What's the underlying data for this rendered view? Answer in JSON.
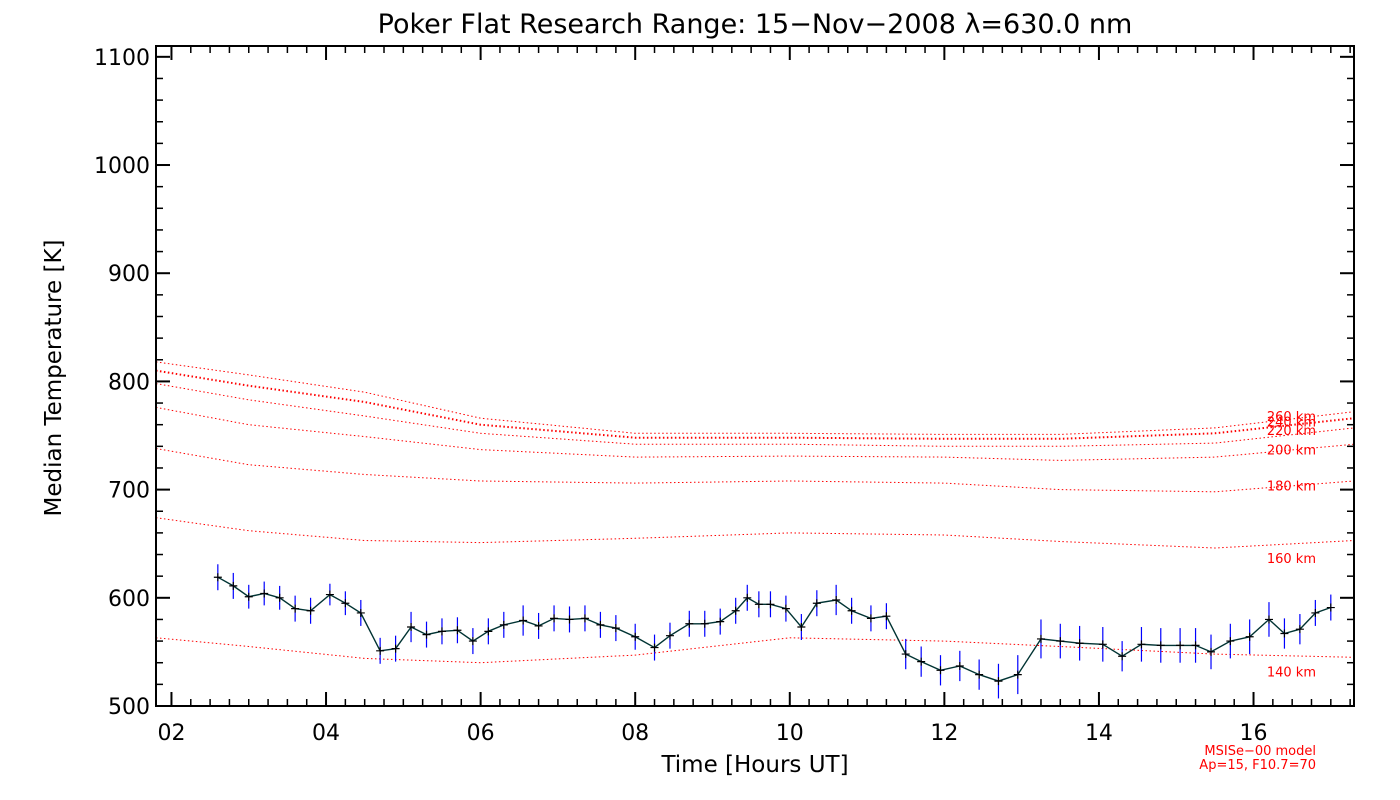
{
  "chart_data": {
    "type": "line",
    "title": "Poker Flat Research Range: 15−Nov−2008 λ=630.0 nm",
    "xlabel": "Time [Hours UT]",
    "ylabel": "Median Temperature [K]",
    "xlim": [
      1.8,
      17.3
    ],
    "ylim": [
      500,
      1110
    ],
    "xticks": [
      2,
      4,
      6,
      8,
      10,
      12,
      14,
      16
    ],
    "xtick_labels": [
      "02",
      "04",
      "06",
      "08",
      "10",
      "12",
      "14",
      "16"
    ],
    "yticks": [
      500,
      600,
      700,
      800,
      900,
      1000,
      1100
    ],
    "ytick_labels": [
      "500",
      "600",
      "700",
      "800",
      "900",
      "1000",
      "1100"
    ],
    "grid": false,
    "colors": {
      "measured_line": "#003333",
      "error_bar": "#0000ff",
      "model": "#ff0000",
      "axes": "#000000"
    },
    "series": [
      {
        "kind": "measured",
        "x": [
          2.6,
          2.8,
          3.0,
          3.2,
          3.4,
          3.6,
          3.8,
          4.05,
          4.25,
          4.45,
          4.7,
          4.9,
          5.1,
          5.3,
          5.5,
          5.7,
          5.9,
          6.1,
          6.3,
          6.55,
          6.75,
          6.95,
          7.15,
          7.35,
          7.55,
          7.75,
          8.0,
          8.25,
          8.45,
          8.7,
          8.9,
          9.1,
          9.3,
          9.45,
          9.6,
          9.75,
          9.95,
          10.15,
          10.35,
          10.6,
          10.8,
          11.05,
          11.25,
          11.5,
          11.7,
          11.95,
          12.2,
          12.45,
          12.7,
          12.95,
          13.25,
          13.5,
          13.75,
          14.05,
          14.3,
          14.55,
          14.8,
          15.05,
          15.25,
          15.45,
          15.7,
          15.95,
          16.2,
          16.4,
          16.6,
          16.8,
          17.0
        ],
        "y": [
          619,
          611,
          601,
          604,
          600,
          590,
          588,
          603,
          595,
          586,
          551,
          553,
          573,
          566,
          569,
          570,
          560,
          569,
          575,
          579,
          574,
          581,
          580,
          581,
          575,
          572,
          564,
          554,
          565,
          576,
          576,
          578,
          588,
          600,
          594,
          594,
          590,
          573,
          595,
          598,
          588,
          581,
          583,
          548,
          541,
          533,
          537,
          529,
          523,
          529,
          562,
          560,
          558,
          557,
          546,
          557,
          556,
          556,
          556,
          550,
          560,
          564,
          580,
          567,
          571,
          586,
          591
        ],
        "err": [
          12,
          12,
          11,
          11,
          11,
          12,
          12,
          10,
          11,
          12,
          12,
          12,
          14,
          12,
          12,
          12,
          12,
          12,
          12,
          14,
          12,
          12,
          12,
          12,
          12,
          12,
          12,
          12,
          12,
          12,
          12,
          12,
          12,
          12,
          12,
          12,
          12,
          12,
          12,
          14,
          12,
          12,
          12,
          14,
          14,
          14,
          14,
          14,
          16,
          18,
          18,
          16,
          16,
          16,
          14,
          16,
          16,
          16,
          16,
          16,
          16,
          16,
          16,
          14,
          14,
          12,
          12
        ]
      },
      {
        "kind": "model",
        "label": "140 km",
        "x": [
          1.8,
          3,
          4.5,
          6,
          8,
          10,
          12,
          13.5,
          15.5,
          17.3
        ],
        "y": [
          563,
          555,
          544,
          540,
          547,
          563,
          560,
          555,
          548,
          545
        ]
      },
      {
        "kind": "model",
        "label": "160 km",
        "x": [
          1.8,
          3,
          4.5,
          6,
          8,
          10,
          12,
          13.5,
          15.5,
          17.3
        ],
        "y": [
          674,
          662,
          653,
          651,
          655,
          660,
          658,
          652,
          646,
          653
        ]
      },
      {
        "kind": "model",
        "label": "180 km",
        "x": [
          1.8,
          3,
          4.5,
          6,
          8,
          10,
          12,
          13.5,
          15.5,
          17.3
        ],
        "y": [
          738,
          723,
          714,
          708,
          706,
          708,
          706,
          700,
          698,
          708
        ]
      },
      {
        "kind": "model",
        "label": "200 km",
        "x": [
          1.8,
          3,
          4.5,
          6,
          8,
          10,
          12,
          13.5,
          15.5,
          17.3
        ],
        "y": [
          776,
          760,
          749,
          737,
          730,
          731,
          730,
          727,
          730,
          742
        ]
      },
      {
        "kind": "model",
        "label": "220 km",
        "x": [
          1.8,
          3,
          4.5,
          6,
          8,
          10,
          12,
          13.5,
          15.5,
          17.3
        ],
        "y": [
          798,
          783,
          768,
          752,
          742,
          742,
          740,
          740,
          743,
          757
        ]
      },
      {
        "kind": "model",
        "label": "240 km",
        "x": [
          1.8,
          3,
          4.5,
          6,
          8,
          10,
          12,
          13.5,
          15.5,
          17.3
        ],
        "y": [
          810,
          796,
          781,
          760,
          748,
          748,
          747,
          747,
          752,
          766
        ]
      },
      {
        "kind": "model",
        "label": "260 km",
        "x": [
          1.8,
          3,
          4.5,
          6,
          8,
          10,
          12,
          13.5,
          15.5,
          17.3
        ],
        "y": [
          818,
          806,
          790,
          766,
          752,
          752,
          751,
          751,
          757,
          772
        ]
      }
    ],
    "model_labels": [
      {
        "text": "140 km",
        "y": 531
      },
      {
        "text": "160 km",
        "y": 636
      },
      {
        "text": "180 km",
        "y": 703
      },
      {
        "text": "200 km",
        "y": 736
      },
      {
        "text": "220 km",
        "y": 754
      },
      {
        "text": "240 km",
        "y": 762
      },
      {
        "text": "260 km",
        "y": 767
      }
    ],
    "annotations": [
      "MSISe−00 model",
      "Ap=15, F10.7=70"
    ]
  }
}
